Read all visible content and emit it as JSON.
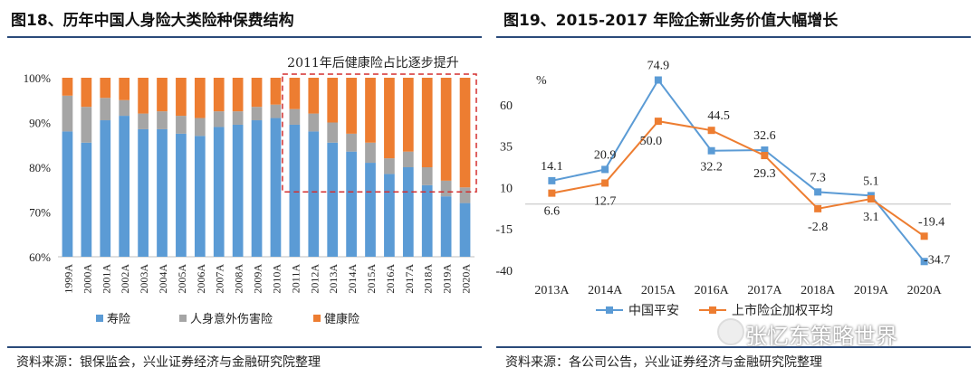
{
  "left": {
    "title": "图18、历年中国人身险大类险种保费结构",
    "source": "资料来源：银保监会，兴业证券经济与金融研究院整理",
    "annotation": "2011年后健康险占比逐步提升",
    "colors": {
      "life": "#5B9BD5",
      "accident": "#A5A5A5",
      "health": "#ED7D31",
      "annotation": "#D32F2F"
    },
    "chart_data": {
      "type": "bar",
      "stacked": true,
      "categories": [
        "1999A",
        "2000A",
        "2001A",
        "2002A",
        "2003A",
        "2004A",
        "2005A",
        "2006A",
        "2007A",
        "2008A",
        "2009A",
        "2010A",
        "2011A",
        "2012A",
        "2013A",
        "2014A",
        "2015A",
        "2016A",
        "2017A",
        "2018A",
        "2019A",
        "2020A"
      ],
      "series": [
        {
          "name": "寿险",
          "values": [
            88,
            85.5,
            90.5,
            91.5,
            88.5,
            88.5,
            87.5,
            87,
            89,
            89.5,
            90.5,
            91,
            89.5,
            88,
            85.5,
            83.5,
            81,
            78.5,
            80,
            76,
            73.5,
            72
          ]
        },
        {
          "name": "人身意外伤害险",
          "values": [
            8,
            8,
            5,
            3.5,
            3.5,
            4,
            4,
            4,
            3.5,
            3,
            3,
            3,
            3.5,
            4,
            4.5,
            4,
            4.5,
            3.5,
            3.5,
            4,
            3.5,
            3.5
          ]
        },
        {
          "name": "健康险",
          "values": [
            4,
            6.5,
            4.5,
            5,
            8,
            7.5,
            8.5,
            9,
            7.5,
            7.5,
            6.5,
            6,
            7,
            8,
            10,
            12.5,
            14.5,
            18,
            16.5,
            20,
            23,
            24.5
          ]
        }
      ],
      "ylim": [
        60,
        100
      ],
      "yticks": [
        "60%",
        "70%",
        "80%",
        "90%",
        "100%"
      ],
      "yticks_values": [
        60,
        70,
        80,
        90,
        100
      ],
      "highlight_from": "2011A",
      "legend_position": "bottom"
    }
  },
  "right": {
    "title": "图19、2015-2017 年险企新业务价值大幅增长",
    "source": "资料来源：各公司公告，兴业证券经济与金融研究院整理",
    "unit": "%",
    "colors": {
      "pingan": "#5B9BD5",
      "industry": "#ED7D31"
    },
    "chart_data": {
      "type": "line",
      "categories": [
        "2013A",
        "2014A",
        "2015A",
        "2016A",
        "2017A",
        "2018A",
        "2019A",
        "2020A"
      ],
      "series": [
        {
          "name": "中国平安",
          "values": [
            14.1,
            20.9,
            74.9,
            32.2,
            32.6,
            7.3,
            5.1,
            -34.7
          ],
          "labels": [
            "14.1",
            "20.9",
            "74.9",
            "32.2",
            "32.6",
            "7.3",
            "5.1",
            "-34.7"
          ]
        },
        {
          "name": "上市险企加权平均",
          "values": [
            6.6,
            12.7,
            50.0,
            44.5,
            29.3,
            -2.8,
            3.1,
            -19.4
          ],
          "labels": [
            "6.6",
            "12.7",
            "50.0",
            "44.5",
            "29.3",
            "-2.8",
            "3.1",
            "-19.4"
          ]
        }
      ],
      "ylim": [
        -40,
        85
      ],
      "yticks": [
        "-40",
        "-15",
        "10",
        "35",
        "60"
      ],
      "yticks_values": [
        -40,
        -15,
        10,
        35,
        60
      ],
      "legend_position": "bottom"
    }
  },
  "watermark": "张忆东策略世界"
}
